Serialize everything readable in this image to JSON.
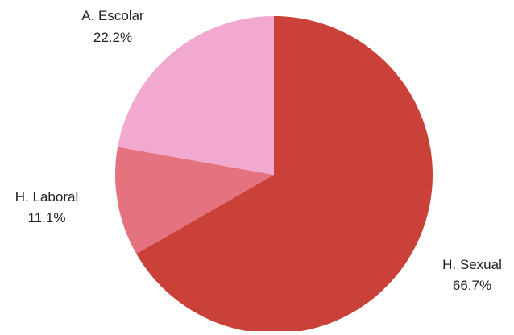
{
  "chart_data": {
    "type": "pie",
    "start_angle_deg": 0,
    "direction": "clockwise",
    "slices": [
      {
        "label": "H. Sexual",
        "value": 66.7,
        "percent_label": "66.7%",
        "color": "#c94138"
      },
      {
        "label": "H. Laboral",
        "value": 11.1,
        "percent_label": "11.1%",
        "color": "#e4737f"
      },
      {
        "label": "A. Escolar",
        "value": 22.2,
        "percent_label": "22.2%",
        "color": "#f2a9cf"
      }
    ]
  }
}
